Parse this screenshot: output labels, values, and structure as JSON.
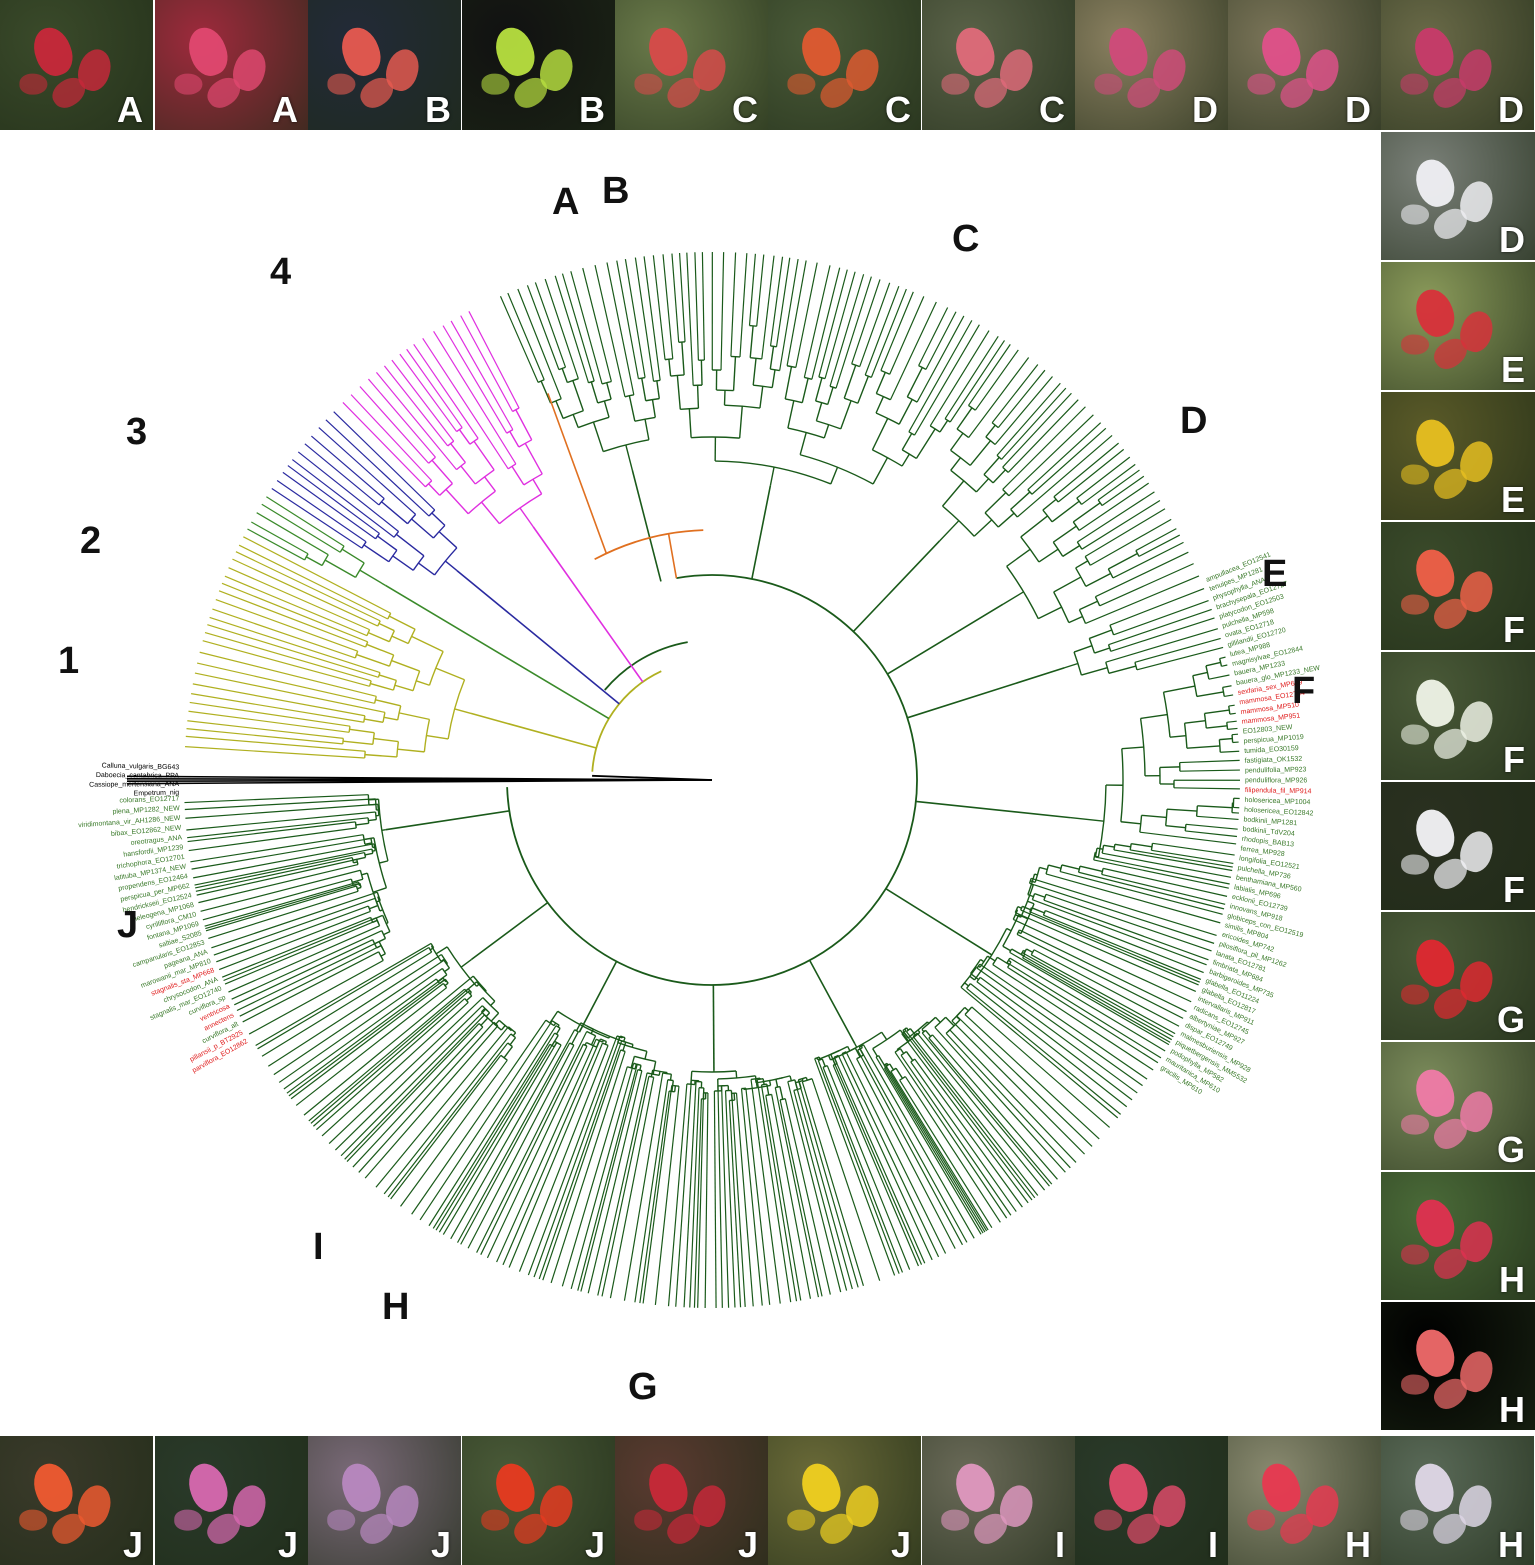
{
  "photos_top": [
    {
      "letter": "A",
      "bg": "#3a4a2a",
      "flower": "#c8283a"
    },
    {
      "letter": "A",
      "bg": "#9e2a3c",
      "flower": "#e04870"
    },
    {
      "letter": "B",
      "bg": "#222a38",
      "flower": "#e85a50"
    },
    {
      "letter": "B",
      "bg": "#111111",
      "flower": "#b8e040"
    },
    {
      "letter": "C",
      "bg": "#6a7a4a",
      "flower": "#d84a4a"
    },
    {
      "letter": "C",
      "bg": "#4a5a38",
      "flower": "#e05a30"
    },
    {
      "letter": "C",
      "bg": "#5a6248",
      "flower": "#e06a7a"
    },
    {
      "letter": "D",
      "bg": "#8a8060",
      "flower": "#d04a7a"
    },
    {
      "letter": "D",
      "bg": "#7a7458",
      "flower": "#e0508a"
    },
    {
      "letter": "D",
      "bg": "#6a6a48",
      "flower": "#c83a6a"
    }
  ],
  "photos_right": [
    {
      "letter": "D",
      "bg": "#7a8078",
      "flower": "#f0f0f4"
    },
    {
      "letter": "E",
      "bg": "#8a9a5a",
      "flower": "#d8303a"
    },
    {
      "letter": "E",
      "bg": "#5a5a28",
      "flower": "#e8c020"
    },
    {
      "letter": "F",
      "bg": "#3a4a2a",
      "flower": "#f06048"
    },
    {
      "letter": "F",
      "bg": "#4a5a38",
      "flower": "#f0f4e8"
    },
    {
      "letter": "F",
      "bg": "#2a3020",
      "flower": "#f4f4f8"
    },
    {
      "letter": "G",
      "bg": "#4a5a38",
      "flower": "#e02830"
    },
    {
      "letter": "G",
      "bg": "#7a8a5a",
      "flower": "#f07aa8"
    },
    {
      "letter": "H",
      "bg": "#4a6a38",
      "flower": "#e03050"
    },
    {
      "letter": "H",
      "bg": "#000000",
      "flower": "#f06a6a"
    }
  ],
  "photos_bottom": [
    {
      "letter": "J",
      "bg": "#3a3a2a",
      "flower": "#f05a30"
    },
    {
      "letter": "J",
      "bg": "#2a3a2a",
      "flower": "#d868b0"
    },
    {
      "letter": "J",
      "bg": "#7a6a78",
      "flower": "#b888c0"
    },
    {
      "letter": "J",
      "bg": "#4a5a38",
      "flower": "#e83a20"
    },
    {
      "letter": "J",
      "bg": "#5a3a30",
      "flower": "#c82838"
    },
    {
      "letter": "J",
      "bg": "#6a6a38",
      "flower": "#f0d020"
    },
    {
      "letter": "I",
      "bg": "#6a6a58",
      "flower": "#e098c0"
    },
    {
      "letter": "I",
      "bg": "#2a3a2a",
      "flower": "#e04a6a"
    },
    {
      "letter": "H",
      "bg": "#8a8a70",
      "flower": "#e83850"
    },
    {
      "letter": "H",
      "bg": "#5a6a58",
      "flower": "#e0d8e8"
    }
  ],
  "tree_labels": {
    "outgroup": [
      "Calluna_vulgaris_BG643",
      "Daboecia_cantabrica_PPA",
      "Cassiope_mertensiana_ANA",
      "Empetrum_nig"
    ],
    "left_visible": [
      "colorans_EO12717",
      "plena_MP1282_NEW",
      "viridimontana_vir_AH1286_NEW",
      "bibax_EO12862_NEW",
      "oreotragus_ANA",
      "hansfordii_MP1239",
      "trichophora_EO12701",
      "latituba_MP1374_NEW",
      "propendens_EO12464",
      "perspicua_per_MP662",
      "hendrickseii_EO12524",
      "heleogena_MP1068",
      "cyrilliflora_CM10",
      "fontana_MP1069",
      "saltiae_S2085",
      "campanularis_EO12853",
      "pageana_ANA",
      "marowanii_mar_MP810",
      "stagnalis_sta_MP668",
      "chrysocodon_ANA",
      "stagnalis_mar_EO12740",
      "curviflora_sp",
      "ventricosa",
      "annectens",
      "curviflora_alt",
      "pillansii_p_BT2925",
      "parviflora_EO12862"
    ],
    "right_visible": [
      "ampullacea_EO12541",
      "tenuipes_MP1281",
      "physophylla_ANA",
      "brachysepala_EO12727",
      "platycodon_EO12503",
      "pulchella_MP598",
      "ovata_EO12718",
      "gillilandii_EO12720",
      "lutea_MP988",
      "magnisylvae_EO12844",
      "bauera_MP1233",
      "bauera_glo_MP1233_NEW",
      "sexfaria_sex_MP699",
      "mammosa_EO12794",
      "mammosa_MP510",
      "mammosa_MP951",
      "EO12803_NEW",
      "perspicua_MP1019",
      "tumida_EO30159",
      "fastigiata_OK1532",
      "pendulifolia_MP923",
      "penduliflora_MP926",
      "filipendula_fil_MP914",
      "holosericea_MP1004",
      "holosericea_EO12842",
      "bodkinii_MP1281",
      "bodkinii_TdV204",
      "rhodopis_BAB13",
      "ferrea_MP928",
      "longifolia_EO12521",
      "pulchella_MP736",
      "benthamiana_MP560",
      "labialis_MP696",
      "ecklonii_EO12739",
      "innovans_MP918",
      "globiceps_con_EO12519",
      "similis_MP804",
      "ericoides_MP742",
      "pilosiflora_pil_MP1262",
      "lanata_EO12781",
      "fimbriata_MP684",
      "barbigeroides_MP735",
      "glabella_EO11224",
      "glabella_EO12817",
      "intervallaris_MP911",
      "radicans_EO12745",
      "albertyniae_MP927",
      "dispar_EO12749",
      "malmesburiensis_MP928",
      "piquetbergensis_MM5532",
      "podophylla_MP582",
      "mauritanica_MP610",
      "gracilis_MP610"
    ]
  },
  "clade_letters": [
    "A",
    "B",
    "C",
    "D",
    "E",
    "F",
    "G",
    "H",
    "I",
    "J"
  ],
  "clade_numbers": [
    "1",
    "2",
    "3",
    "4"
  ],
  "colors": {
    "outgroup": "#000000",
    "clade1": "#b0b020",
    "clade2": "#3a8a2a",
    "clade3": "#2a2aa0",
    "clade4": "#e030e0",
    "orange": "#e07020",
    "main": "#1a5a1a",
    "tip_text": "#3a7a2a",
    "highlight": "#e02020"
  }
}
